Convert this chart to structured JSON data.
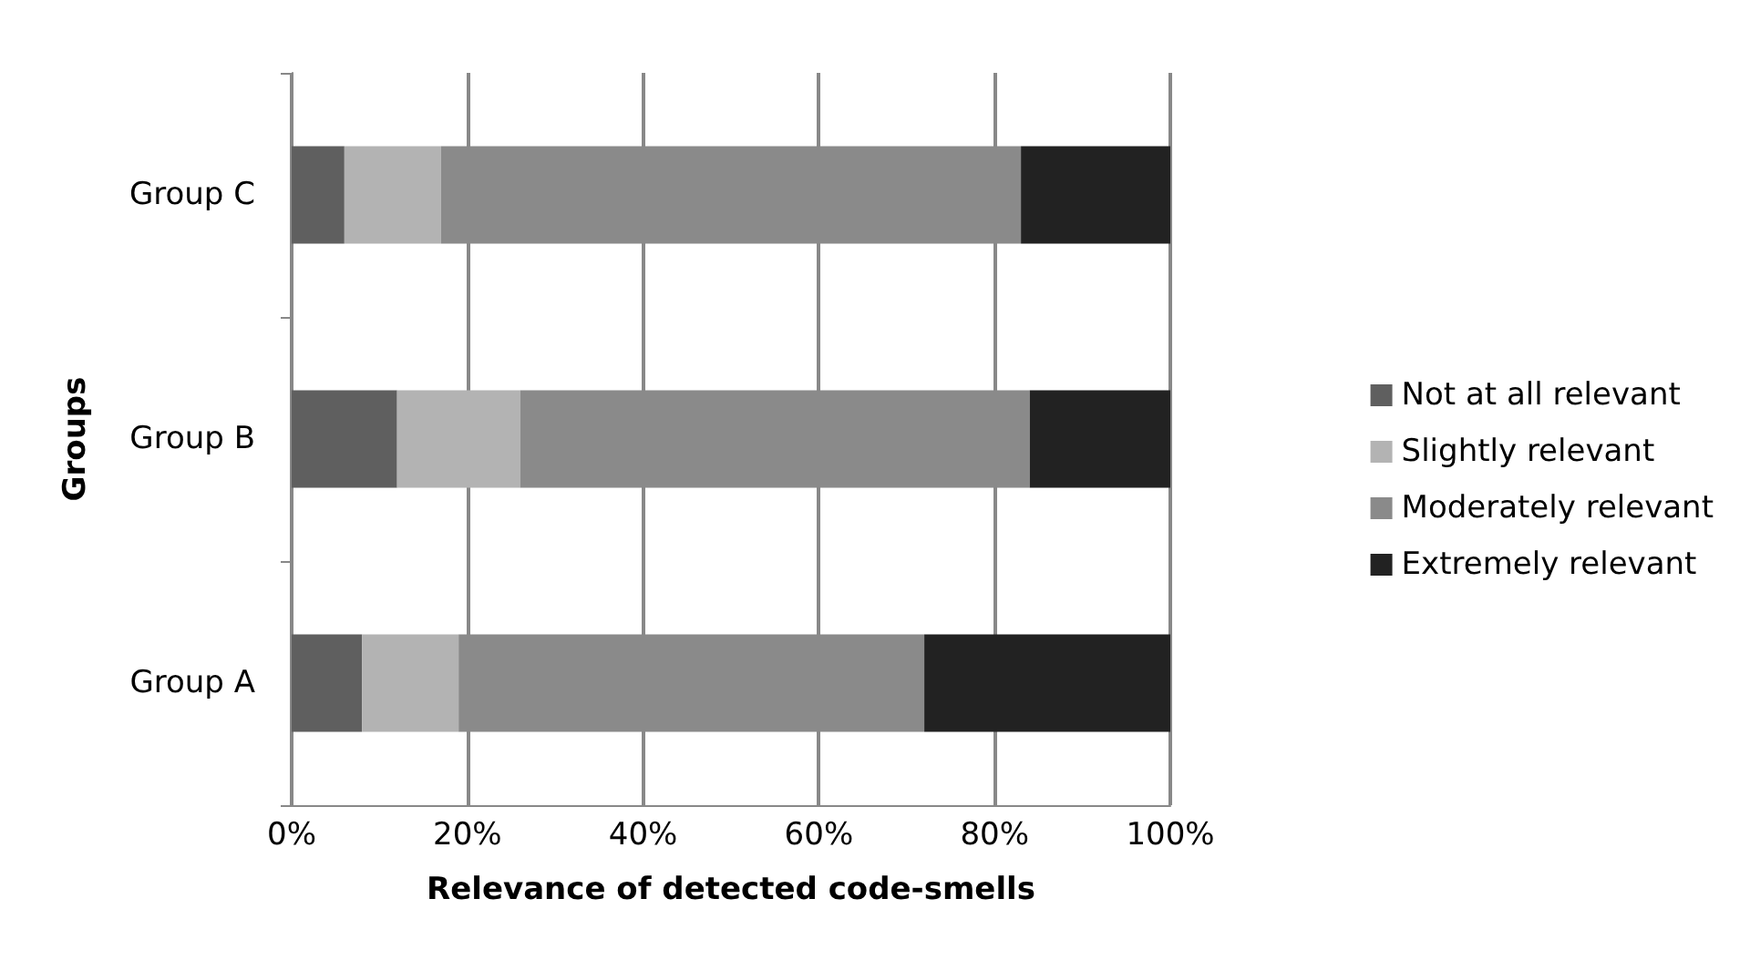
{
  "chart_data": {
    "type": "bar",
    "orientation": "horizontal",
    "stacked": true,
    "xlabel": "Relevance of detected code-smells",
    "ylabel": "Groups",
    "categories": [
      "Group C",
      "Group B",
      "Group A"
    ],
    "series": [
      {
        "name": "Not at all relevant",
        "color": "#5f5f5f",
        "values": [
          6,
          12,
          8
        ]
      },
      {
        "name": "Slightly relevant",
        "color": "#b3b3b3",
        "values": [
          11,
          14,
          11
        ]
      },
      {
        "name": "Moderately relevant",
        "color": "#8a8a8a",
        "values": [
          66,
          58,
          53
        ]
      },
      {
        "name": "Extremely relevant",
        "color": "#222222",
        "values": [
          17,
          16,
          28
        ]
      }
    ],
    "xlim": [
      0,
      100
    ],
    "xticks": [
      {
        "value": 0,
        "label": "0%"
      },
      {
        "value": 20,
        "label": "20%"
      },
      {
        "value": 40,
        "label": "40%"
      },
      {
        "value": 60,
        "label": "60%"
      },
      {
        "value": 80,
        "label": "80%"
      },
      {
        "value": 100,
        "label": "100%"
      }
    ],
    "grid": "x",
    "legend": "right"
  }
}
